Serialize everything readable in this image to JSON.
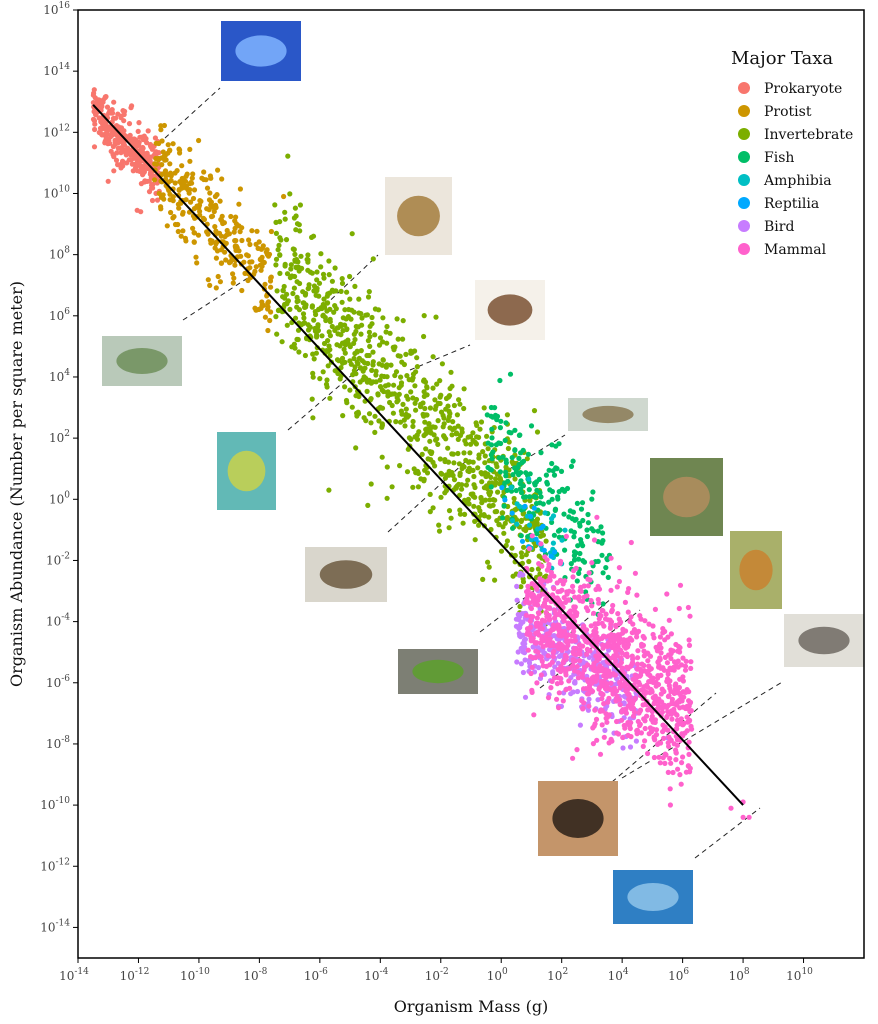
{
  "chart_data": {
    "type": "scatter",
    "title": "",
    "xlabel": "Organism Mass (g)",
    "ylabel": "Organism Abundance (Number per square meter)",
    "x_scale": "log10",
    "y_scale": "log10",
    "xlim": [
      "1e-14",
      "1e12"
    ],
    "ylim": [
      "1e-15",
      "1e16"
    ],
    "x_ticks": [
      {
        "base": "10",
        "exp": "-14"
      },
      {
        "base": "10",
        "exp": "-12"
      },
      {
        "base": "10",
        "exp": "-10"
      },
      {
        "base": "10",
        "exp": "-8"
      },
      {
        "base": "10",
        "exp": "-6"
      },
      {
        "base": "10",
        "exp": "-4"
      },
      {
        "base": "10",
        "exp": "-2"
      },
      {
        "base": "10",
        "exp": "0"
      },
      {
        "base": "10",
        "exp": "2"
      },
      {
        "base": "10",
        "exp": "4"
      },
      {
        "base": "10",
        "exp": "6"
      },
      {
        "base": "10",
        "exp": "8"
      },
      {
        "base": "10",
        "exp": "10"
      }
    ],
    "y_ticks": [
      {
        "base": "10",
        "exp": "-14"
      },
      {
        "base": "10",
        "exp": "-12"
      },
      {
        "base": "10",
        "exp": "-10"
      },
      {
        "base": "10",
        "exp": "-8"
      },
      {
        "base": "10",
        "exp": "-6"
      },
      {
        "base": "10",
        "exp": "-4"
      },
      {
        "base": "10",
        "exp": "-2"
      },
      {
        "base": "10",
        "exp": "0"
      },
      {
        "base": "10",
        "exp": "2"
      },
      {
        "base": "10",
        "exp": "4"
      },
      {
        "base": "10",
        "exp": "6"
      },
      {
        "base": "10",
        "exp": "8"
      },
      {
        "base": "10",
        "exp": "10"
      },
      {
        "base": "10",
        "exp": "12"
      },
      {
        "base": "10",
        "exp": "14"
      },
      {
        "base": "10",
        "exp": "16"
      }
    ],
    "grid": false,
    "legend": {
      "title": "Major Taxa",
      "position": "top-right",
      "entries": [
        {
          "name": "Prokaryote",
          "color": "#F8766D"
        },
        {
          "name": "Protist",
          "color": "#CD9600"
        },
        {
          "name": "Invertebrate",
          "color": "#7CAE00"
        },
        {
          "name": "Fish",
          "color": "#00BE67"
        },
        {
          "name": "Amphibia",
          "color": "#00BFC4"
        },
        {
          "name": "Reptilia",
          "color": "#00A9FF"
        },
        {
          "name": "Bird",
          "color": "#C77CFF"
        },
        {
          "name": "Mammal",
          "color": "#FF61CC"
        }
      ]
    },
    "fit_line": {
      "type": "regression",
      "from": {
        "log10_mass": -13.5,
        "log10_abundance": 12.9
      },
      "to": {
        "log10_mass": 8.0,
        "log10_abundance": -10.0
      }
    },
    "series": [
      {
        "name": "Prokaryote",
        "color": "#F8766D",
        "count": 320,
        "x_log10_range": [
          -13.5,
          -11.3
        ],
        "center": [
          -12.4,
          11.7
        ],
        "spread_y": 0.45,
        "outliers": [
          [
            -13.0,
            10.4
          ]
        ]
      },
      {
        "name": "Protist",
        "color": "#CD9600",
        "count": 300,
        "x_log10_range": [
          -11.5,
          -7.6
        ],
        "center": [
          -9.3,
          8.8
        ],
        "spread_y": 0.8,
        "outliers": [
          [
            -7.2,
            9.9
          ],
          [
            -9.9,
            10.5
          ],
          [
            -11.0,
            10.1
          ]
        ]
      },
      {
        "name": "Invertebrate",
        "color": "#7CAE00",
        "count": 900,
        "x_log10_range": [
          -7.5,
          1.5
        ],
        "center": [
          -3.0,
          3.0
        ],
        "spread_y": 1.2,
        "outliers": [
          [
            -5.9,
            6.0
          ],
          [
            1.1,
            2.9
          ],
          [
            1.2,
            2.2
          ],
          [
            -5.7,
            0.3
          ],
          [
            -4.3,
            0.5
          ]
        ]
      },
      {
        "name": "Fish",
        "color": "#00BE67",
        "count": 220,
        "x_log10_range": [
          -0.5,
          3.6
        ],
        "center": [
          1.5,
          0.0
        ],
        "spread_y": 0.9,
        "outliers": [
          [
            1.0,
            2.4
          ],
          [
            3.0,
            -3.4
          ]
        ]
      },
      {
        "name": "Amphibia",
        "color": "#00BFC4",
        "count": 25,
        "x_log10_range": [
          0.2,
          2.2
        ],
        "center": [
          1.2,
          -0.9
        ],
        "spread_y": 0.6,
        "outliers": []
      },
      {
        "name": "Reptilia",
        "color": "#00A9FF",
        "count": 15,
        "x_log10_range": [
          0.0,
          1.8
        ],
        "center": [
          0.9,
          -1.0
        ],
        "spread_y": 0.5,
        "outliers": []
      },
      {
        "name": "Bird",
        "color": "#C77CFF",
        "count": 350,
        "x_log10_range": [
          0.5,
          4.5
        ],
        "center": [
          1.8,
          -4.9
        ],
        "spread_y": 0.75,
        "outliers": [
          [
            5.5,
            -7.8
          ],
          [
            3.0,
            -6.3
          ]
        ]
      },
      {
        "name": "Mammal",
        "color": "#FF61CC",
        "count": 1000,
        "x_log10_range": [
          0.8,
          6.3
        ],
        "center": [
          4.2,
          -5.7
        ],
        "spread_y": 1.2,
        "outliers": [
          [
            8.0,
            -9.9
          ],
          [
            8.0,
            -10.4
          ],
          [
            7.6,
            -10.1
          ],
          [
            8.2,
            -10.4
          ],
          [
            5.1,
            -3.6
          ]
        ]
      }
    ],
    "image_annotations": [
      {
        "name": "bacteria-photo"
      },
      {
        "name": "paramecium-photo"
      },
      {
        "name": "rotifer-photo"
      },
      {
        "name": "copepod-photo"
      },
      {
        "name": "amphipod-photo"
      },
      {
        "name": "fish-photo"
      },
      {
        "name": "chipmunk-photo"
      },
      {
        "name": "gazelle-photo"
      },
      {
        "name": "elephant-photo"
      },
      {
        "name": "lizard-photo"
      },
      {
        "name": "quail-photo"
      },
      {
        "name": "moose-photo"
      },
      {
        "name": "whale-photo"
      }
    ]
  }
}
